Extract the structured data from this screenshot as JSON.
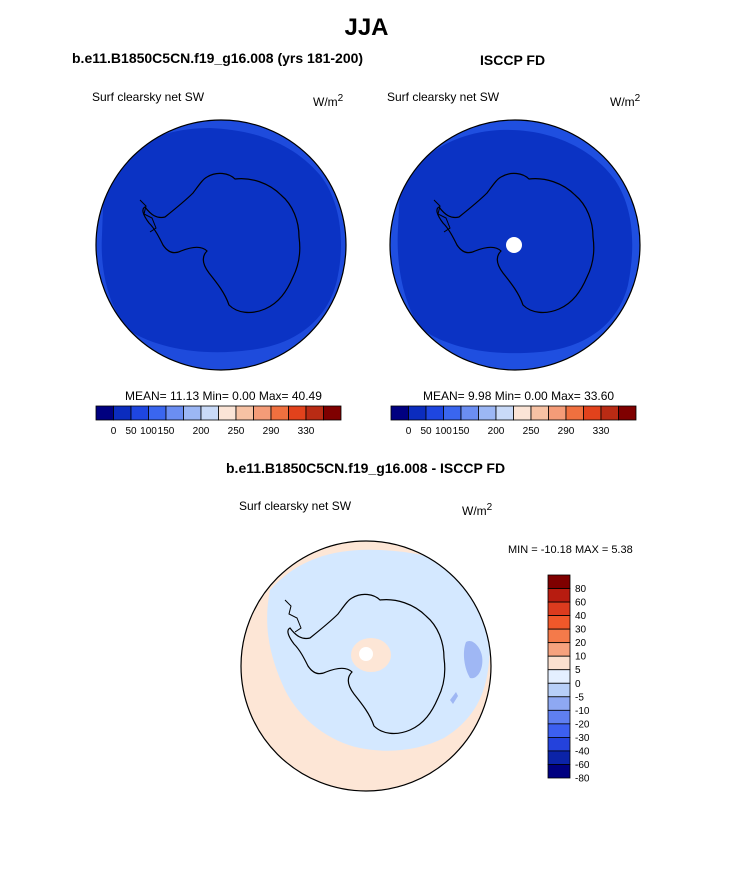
{
  "figure": {
    "title": "JJA"
  },
  "panel_model": {
    "title": "b.e11.B1850C5CN.f19_g16.008 (yrs 181-200)",
    "variable": "Surf clearsky net SW",
    "units_base": "W/m",
    "units_exp": "2",
    "stats": "MEAN= 11.13  Min=   0.00  Max= 40.49"
  },
  "panel_obs": {
    "title": "ISCCP FD",
    "variable": "Surf clearsky net SW",
    "units_base": "W/m",
    "units_exp": "2",
    "stats": "MEAN=  9.98  Min=   0.00  Max= 33.60"
  },
  "panel_diff": {
    "title": "b.e11.B1850C5CN.f19_g16.008 - ISCCP FD",
    "variable": "Surf clearsky net SW",
    "units_base": "W/m",
    "units_exp": "2",
    "stats": "MIN = -10.18 MAX =   5.38"
  },
  "colorbar_abs": {
    "colors": [
      "#000080",
      "#0b2cbe",
      "#1e46e0",
      "#3a66ef",
      "#6b8ef2",
      "#9cb7f5",
      "#c9daf8",
      "#fbe4d6",
      "#f7c2a4",
      "#f59c78",
      "#f0703f",
      "#e2421c",
      "#b92b14",
      "#7f0000"
    ],
    "labels": [
      "0",
      "50",
      "100",
      "150",
      "200",
      "250",
      "290",
      "330"
    ]
  },
  "colorbar_diff": {
    "colors": [
      "#7f0000",
      "#b71c10",
      "#dc3b1e",
      "#f0582a",
      "#f47a4a",
      "#f6a27e",
      "#fbe0cf",
      "#e4efff",
      "#b7cff8",
      "#8ea8f2",
      "#5f7ff0",
      "#3c5ff0",
      "#2442dc",
      "#0b23a8",
      "#000080"
    ],
    "labels": [
      "80",
      "60",
      "40",
      "30",
      "20",
      "10",
      "5",
      "0",
      "-5",
      "-10",
      "-20",
      "-30",
      "-40",
      "-60",
      "-80"
    ]
  },
  "map_colors": {
    "ocean_model": "#1e4bdc",
    "ocean_obs": "#1f4fe0",
    "interior": "#0b33c4",
    "diff_pos": "#fde6d6",
    "diff_neg": "#d4e8ff",
    "diff_neg2": "#9fb7f4",
    "missing": "#ffffff"
  }
}
